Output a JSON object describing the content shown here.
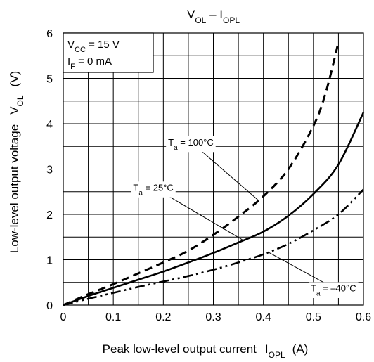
{
  "chart_data": {
    "type": "line",
    "title": {
      "main": "V",
      "sub1": "OL",
      "dash": " – I",
      "sub2": "OPL"
    },
    "xlabel": {
      "text": "Peak low-level output current",
      "sym": "I",
      "sub": "OPL",
      "unit": "(A)"
    },
    "ylabel": {
      "text": "Low-level output voltage",
      "sym": "V",
      "sub": "OL",
      "unit": "(V)"
    },
    "xlim": [
      0,
      0.6
    ],
    "ylim": [
      0,
      6
    ],
    "x_ticks": [
      0,
      0.1,
      0.2,
      0.3,
      0.4,
      0.5,
      0.6
    ],
    "x_tick_labels": [
      "0",
      "0.1",
      "0.2",
      "0.3",
      "0.4",
      "0.5",
      "0.6"
    ],
    "y_ticks": [
      0,
      1,
      2,
      3,
      4,
      5,
      6
    ],
    "y_tick_labels": [
      "0",
      "1",
      "2",
      "3",
      "4",
      "5",
      "6"
    ],
    "minor_x_step": 0.05,
    "minor_y_step": 0.5,
    "grid": true,
    "conditions": [
      {
        "main": "V",
        "sub": "CC",
        "rest": " = 15 V"
      },
      {
        "main": "I",
        "sub": "F",
        "rest": " = 0 mA"
      }
    ],
    "series": [
      {
        "name": "T_a = 100°C",
        "label": {
          "main": "T",
          "sub": "a",
          "rest": " = 100°C"
        },
        "style": "dashed",
        "x": [
          0,
          0.05,
          0.1,
          0.15,
          0.2,
          0.25,
          0.3,
          0.35,
          0.4,
          0.45,
          0.5,
          0.525,
          0.55
        ],
        "y": [
          0,
          0.24,
          0.46,
          0.7,
          0.94,
          1.2,
          1.55,
          1.95,
          2.4,
          3.0,
          3.95,
          4.7,
          5.8
        ]
      },
      {
        "name": "T_a = 25°C",
        "label": {
          "main": "T",
          "sub": "a",
          "rest": " = 25°C"
        },
        "style": "solid",
        "x": [
          0,
          0.05,
          0.1,
          0.15,
          0.2,
          0.25,
          0.3,
          0.35,
          0.4,
          0.45,
          0.5,
          0.55,
          0.6
        ],
        "y": [
          0,
          0.2,
          0.38,
          0.56,
          0.74,
          0.94,
          1.15,
          1.38,
          1.62,
          1.97,
          2.45,
          3.1,
          4.25
        ]
      },
      {
        "name": "T_a = –40°C",
        "label": {
          "main": "T",
          "sub": "a",
          "rest": " = –40°C"
        },
        "style": "dashdotdot",
        "x": [
          0,
          0.05,
          0.1,
          0.15,
          0.2,
          0.25,
          0.3,
          0.35,
          0.4,
          0.45,
          0.5,
          0.55,
          0.6
        ],
        "y": [
          0,
          0.14,
          0.27,
          0.4,
          0.52,
          0.64,
          0.78,
          0.94,
          1.12,
          1.35,
          1.65,
          2.0,
          2.55
        ]
      }
    ],
    "annotations": [
      {
        "series": 0,
        "at_x": 0.39,
        "label_x": 0.255,
        "label_y": 3.6
      },
      {
        "series": 1,
        "at_x": 0.36,
        "label_x": 0.18,
        "label_y": 2.6
      },
      {
        "series": 2,
        "at_x": 0.41,
        "label_x": 0.54,
        "label_y": 0.38
      }
    ]
  }
}
